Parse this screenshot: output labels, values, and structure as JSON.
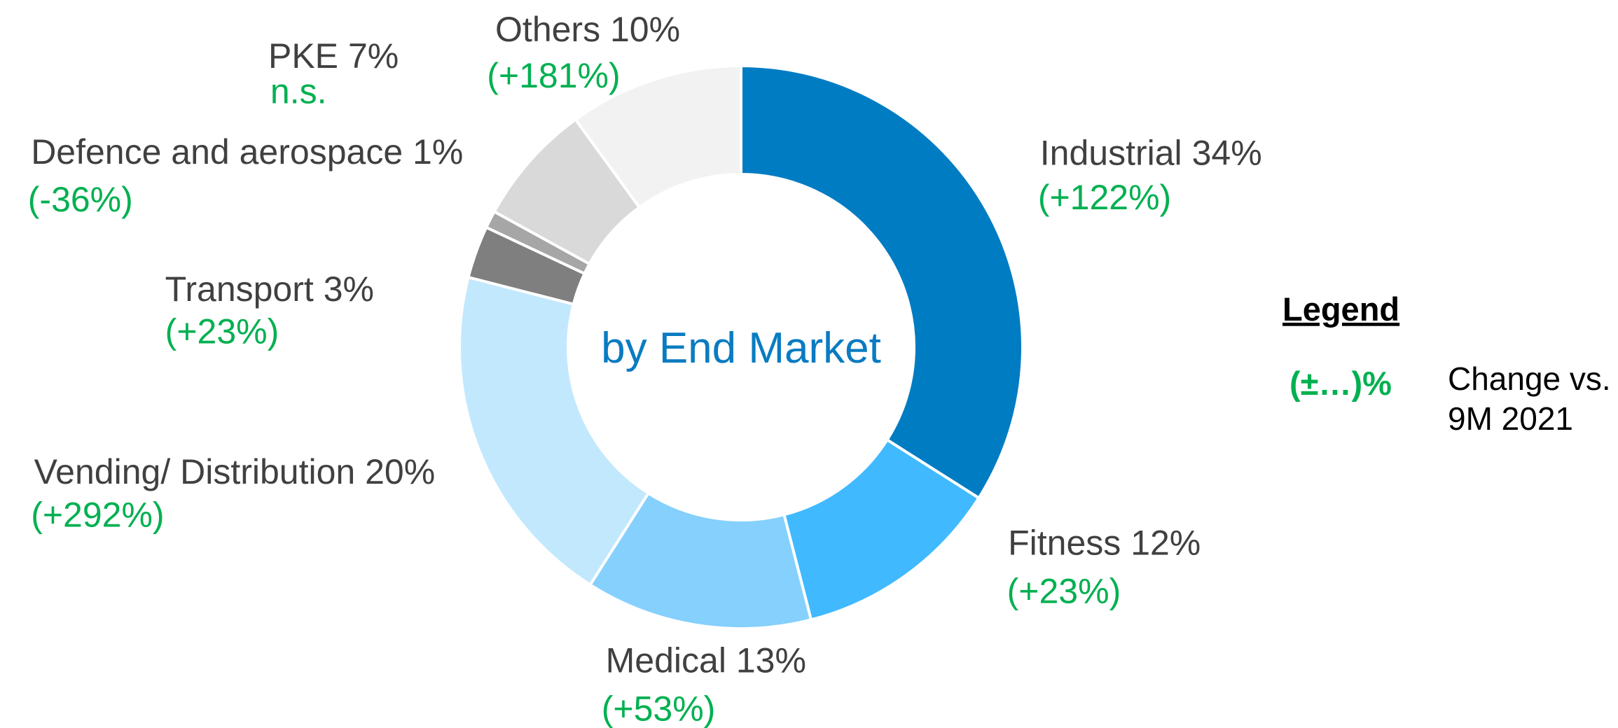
{
  "chart_data": {
    "type": "donut",
    "center_label": "by End Market",
    "categories": [
      "Industrial",
      "Fitness",
      "Medical",
      "Vending/ Distribution",
      "Transport",
      "Defence and aerospace",
      "PKE",
      "Others"
    ],
    "values": [
      34,
      12,
      13,
      20,
      3,
      1,
      7,
      10
    ],
    "value_labels": [
      "34%",
      "12%",
      "13%",
      "20%",
      "3%",
      "1%",
      "7%",
      "10%"
    ],
    "changes": [
      "(+122%)",
      "(+23%)",
      "(+53%)",
      "(+292%)",
      "(+23%)",
      "(-36%)",
      "n.s.",
      "(+181%)"
    ],
    "colors": [
      "#007cc3",
      "#40b9ff",
      "#85d0fd",
      "#c2e8fd",
      "#7f7f7f",
      "#a6a6a6",
      "#d9d9d9",
      "#f2f2f2"
    ],
    "legend": {
      "title": "Legend",
      "symbol": "(±…)%",
      "text": [
        "Change vs.",
        "9M 2021"
      ]
    }
  }
}
